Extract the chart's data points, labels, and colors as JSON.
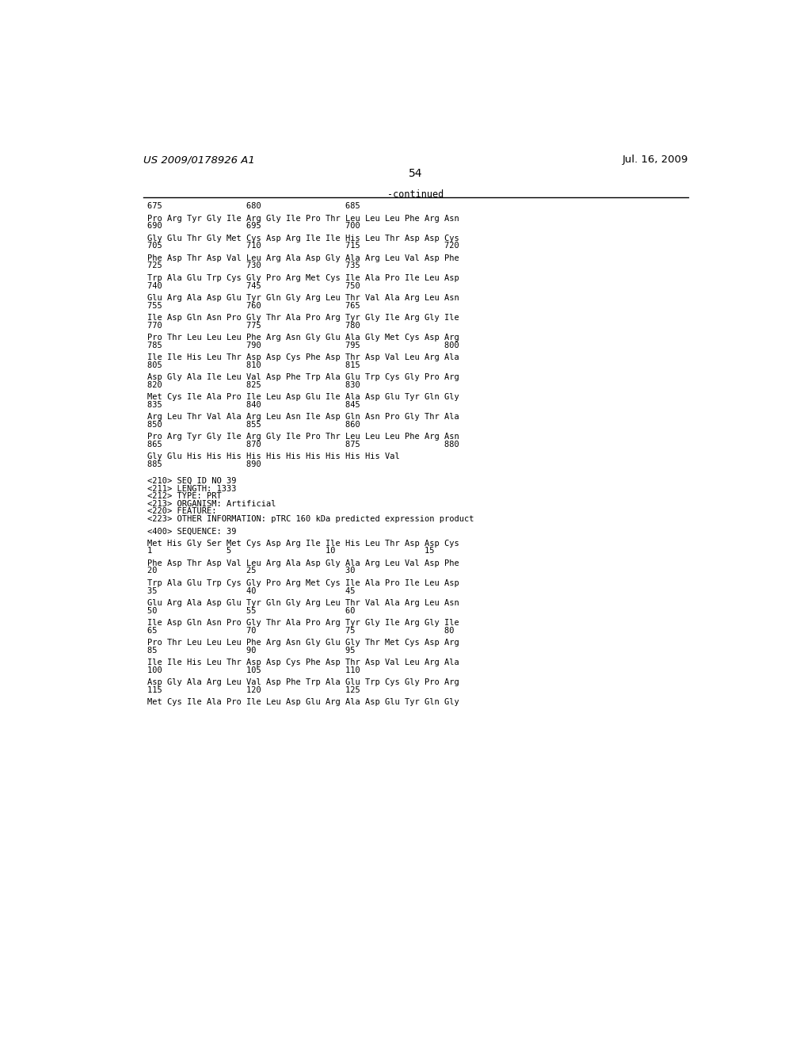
{
  "header_left": "US 2009/0178926 A1",
  "header_right": "Jul. 16, 2009",
  "page_number": "54",
  "continued_label": "-continued",
  "background_color": "#ffffff",
  "text_color": "#000000",
  "font_size": 7.5,
  "mono_font": "DejaVu Sans Mono",
  "lines": [
    {
      "type": "numline",
      "text": "675                 680                 685"
    },
    {
      "type": "blank"
    },
    {
      "type": "seqline",
      "text": "Pro Arg Tyr Gly Ile Arg Gly Ile Pro Thr Leu Leu Leu Phe Arg Asn"
    },
    {
      "type": "numline",
      "text": "690                 695                 700"
    },
    {
      "type": "blank"
    },
    {
      "type": "seqline",
      "text": "Gly Glu Thr Gly Met Cys Asp Arg Ile Ile His Leu Thr Asp Asp Cys"
    },
    {
      "type": "numline",
      "text": "705                 710                 715                 720"
    },
    {
      "type": "blank"
    },
    {
      "type": "seqline",
      "text": "Phe Asp Thr Asp Val Leu Arg Ala Asp Gly Ala Arg Leu Val Asp Phe"
    },
    {
      "type": "numline",
      "text": "725                 730                 735"
    },
    {
      "type": "blank"
    },
    {
      "type": "seqline",
      "text": "Trp Ala Glu Trp Cys Gly Pro Arg Met Cys Ile Ala Pro Ile Leu Asp"
    },
    {
      "type": "numline",
      "text": "740                 745                 750"
    },
    {
      "type": "blank"
    },
    {
      "type": "seqline",
      "text": "Glu Arg Ala Asp Glu Tyr Gln Gly Arg Leu Thr Val Ala Arg Leu Asn"
    },
    {
      "type": "numline",
      "text": "755                 760                 765"
    },
    {
      "type": "blank"
    },
    {
      "type": "seqline",
      "text": "Ile Asp Gln Asn Pro Gly Thr Ala Pro Arg Tyr Gly Ile Arg Gly Ile"
    },
    {
      "type": "numline",
      "text": "770                 775                 780"
    },
    {
      "type": "blank"
    },
    {
      "type": "seqline",
      "text": "Pro Thr Leu Leu Leu Phe Arg Asn Gly Glu Ala Gly Met Cys Asp Arg"
    },
    {
      "type": "numline",
      "text": "785                 790                 795                 800"
    },
    {
      "type": "blank"
    },
    {
      "type": "seqline",
      "text": "Ile Ile His Leu Thr Asp Asp Cys Phe Asp Thr Asp Val Leu Arg Ala"
    },
    {
      "type": "numline",
      "text": "805                 810                 815"
    },
    {
      "type": "blank"
    },
    {
      "type": "seqline",
      "text": "Asp Gly Ala Ile Leu Val Asp Phe Trp Ala Glu Trp Cys Gly Pro Arg"
    },
    {
      "type": "numline",
      "text": "820                 825                 830"
    },
    {
      "type": "blank"
    },
    {
      "type": "seqline",
      "text": "Met Cys Ile Ala Pro Ile Leu Asp Glu Ile Ala Asp Glu Tyr Gln Gly"
    },
    {
      "type": "numline",
      "text": "835                 840                 845"
    },
    {
      "type": "blank"
    },
    {
      "type": "seqline",
      "text": "Arg Leu Thr Val Ala Arg Leu Asn Ile Asp Gln Asn Pro Gly Thr Ala"
    },
    {
      "type": "numline",
      "text": "850                 855                 860"
    },
    {
      "type": "blank"
    },
    {
      "type": "seqline",
      "text": "Pro Arg Tyr Gly Ile Arg Gly Ile Pro Thr Leu Leu Leu Phe Arg Asn"
    },
    {
      "type": "numline",
      "text": "865                 870                 875                 880"
    },
    {
      "type": "blank"
    },
    {
      "type": "seqline",
      "text": "Gly Glu His His His His His His His His His His Val"
    },
    {
      "type": "numline",
      "text": "885                 890"
    },
    {
      "type": "blank"
    },
    {
      "type": "blank"
    },
    {
      "type": "meta",
      "text": "<210> SEQ ID NO 39"
    },
    {
      "type": "meta",
      "text": "<211> LENGTH: 1333"
    },
    {
      "type": "meta",
      "text": "<212> TYPE: PRT"
    },
    {
      "type": "meta",
      "text": "<213> ORGANISM: Artificial"
    },
    {
      "type": "meta",
      "text": "<220> FEATURE:"
    },
    {
      "type": "meta",
      "text": "<223> OTHER INFORMATION: pTRC 160 kDa predicted expression product"
    },
    {
      "type": "blank"
    },
    {
      "type": "meta",
      "text": "<400> SEQUENCE: 39"
    },
    {
      "type": "blank"
    },
    {
      "type": "seqline",
      "text": "Met His Gly Ser Met Cys Asp Arg Ile Ile His Leu Thr Asp Asp Cys"
    },
    {
      "type": "numline",
      "text": "1               5                   10                  15"
    },
    {
      "type": "blank"
    },
    {
      "type": "seqline",
      "text": "Phe Asp Thr Asp Val Leu Arg Ala Asp Gly Ala Arg Leu Val Asp Phe"
    },
    {
      "type": "numline",
      "text": "20                  25                  30"
    },
    {
      "type": "blank"
    },
    {
      "type": "seqline",
      "text": "Trp Ala Glu Trp Cys Gly Pro Arg Met Cys Ile Ala Pro Ile Leu Asp"
    },
    {
      "type": "numline",
      "text": "35                  40                  45"
    },
    {
      "type": "blank"
    },
    {
      "type": "seqline",
      "text": "Glu Arg Ala Asp Glu Tyr Gln Gly Arg Leu Thr Val Ala Arg Leu Asn"
    },
    {
      "type": "numline",
      "text": "50                  55                  60"
    },
    {
      "type": "blank"
    },
    {
      "type": "seqline",
      "text": "Ile Asp Gln Asn Pro Gly Thr Ala Pro Arg Tyr Gly Ile Arg Gly Ile"
    },
    {
      "type": "numline",
      "text": "65                  70                  75                  80"
    },
    {
      "type": "blank"
    },
    {
      "type": "seqline",
      "text": "Pro Thr Leu Leu Leu Phe Arg Asn Gly Glu Gly Thr Met Cys Asp Arg"
    },
    {
      "type": "numline",
      "text": "85                  90                  95"
    },
    {
      "type": "blank"
    },
    {
      "type": "seqline",
      "text": "Ile Ile His Leu Thr Asp Asp Cys Phe Asp Thr Asp Val Leu Arg Ala"
    },
    {
      "type": "numline",
      "text": "100                 105                 110"
    },
    {
      "type": "blank"
    },
    {
      "type": "seqline",
      "text": "Asp Gly Ala Arg Leu Val Asp Phe Trp Ala Glu Trp Cys Gly Pro Arg"
    },
    {
      "type": "numline",
      "text": "115                 120                 125"
    },
    {
      "type": "blank"
    },
    {
      "type": "seqline",
      "text": "Met Cys Ile Ala Pro Ile Leu Asp Glu Arg Ala Asp Glu Tyr Gln Gly"
    }
  ]
}
